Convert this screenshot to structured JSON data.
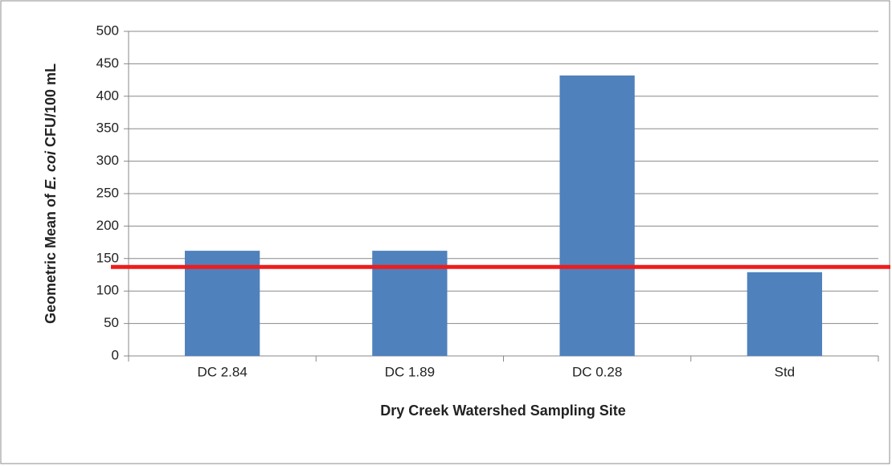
{
  "chart_data": {
    "type": "bar",
    "categories": [
      "DC 2.84",
      "DC 1.89",
      "DC 0.28",
      "Std"
    ],
    "values": [
      162,
      162,
      432,
      129
    ],
    "color": "#4f81bd",
    "ylim": [
      0,
      500
    ],
    "yticks": [
      0,
      50,
      100,
      150,
      200,
      250,
      300,
      350,
      400,
      450,
      500
    ],
    "grid": true,
    "xlabel": "Dry Creek Watershed Sampling Site",
    "ylabel": [
      "Geometric Mean of ",
      "E. coi",
      " CFU/100 mL"
    ],
    "reference_line": {
      "value": 137,
      "color": "#ee1c1c"
    }
  }
}
